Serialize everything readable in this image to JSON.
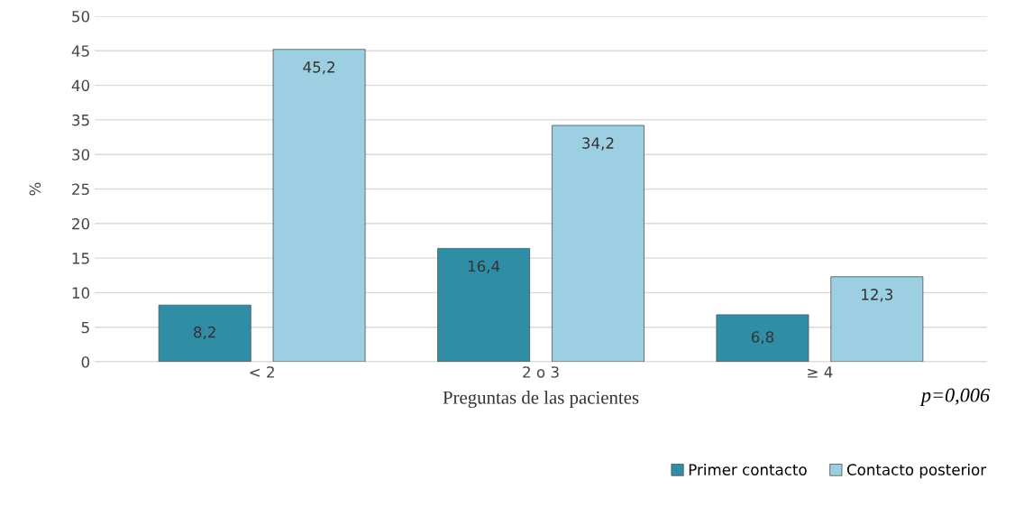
{
  "chart_data": {
    "type": "bar",
    "xlabel": "Preguntas de las pacientes",
    "ylabel": "%",
    "categories": [
      "< 2",
      "2 o 3",
      "≥ 4"
    ],
    "series": [
      {
        "name": "Primer contacto",
        "color": "#2f8ea6",
        "values": [
          8.2,
          16.4,
          6.8
        ],
        "value_labels": [
          "8,2",
          "16,4",
          "6,8"
        ]
      },
      {
        "name": "Contacto posterior",
        "color": "#9ccfe2",
        "values": [
          45.2,
          34.2,
          12.3
        ],
        "value_labels": [
          "45,2",
          "34,2",
          "12,3"
        ]
      }
    ],
    "ylim": [
      0,
      50
    ],
    "yticks": [
      0,
      5,
      10,
      15,
      20,
      25,
      30,
      35,
      40,
      45,
      50
    ],
    "grid": "y",
    "legend": "bottom right",
    "annotations": [
      "p=0,006"
    ]
  }
}
